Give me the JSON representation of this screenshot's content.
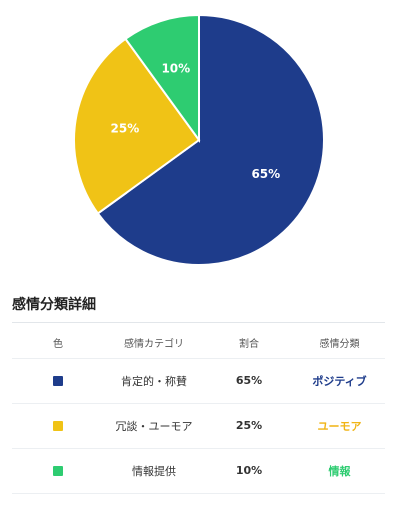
{
  "chart_data": {
    "type": "pie",
    "slices": [
      {
        "label": "65%",
        "value": 65,
        "color": "#1e3c8b"
      },
      {
        "label": "25%",
        "value": 25,
        "color": "#f0c316"
      },
      {
        "label": "10%",
        "value": 10,
        "color": "#2ecc71"
      }
    ]
  },
  "details": {
    "title": "感情分類詳細",
    "headers": {
      "color": "色",
      "category": "感情カテゴリ",
      "ratio": "割合",
      "classification": "感情分類"
    },
    "rows": [
      {
        "color": "#1e3c8b",
        "category": "肯定的・称賛",
        "ratio": "65%",
        "classification": "ポジティブ",
        "class_color": "#1e3c8b"
      },
      {
        "color": "#f0c316",
        "category": "冗談・ユーモア",
        "ratio": "25%",
        "classification": "ユーモア",
        "class_color": "#f0b416"
      },
      {
        "color": "#2ecc71",
        "category": "情報提供",
        "ratio": "10%",
        "classification": "情報",
        "class_color": "#2ecc71"
      }
    ]
  }
}
